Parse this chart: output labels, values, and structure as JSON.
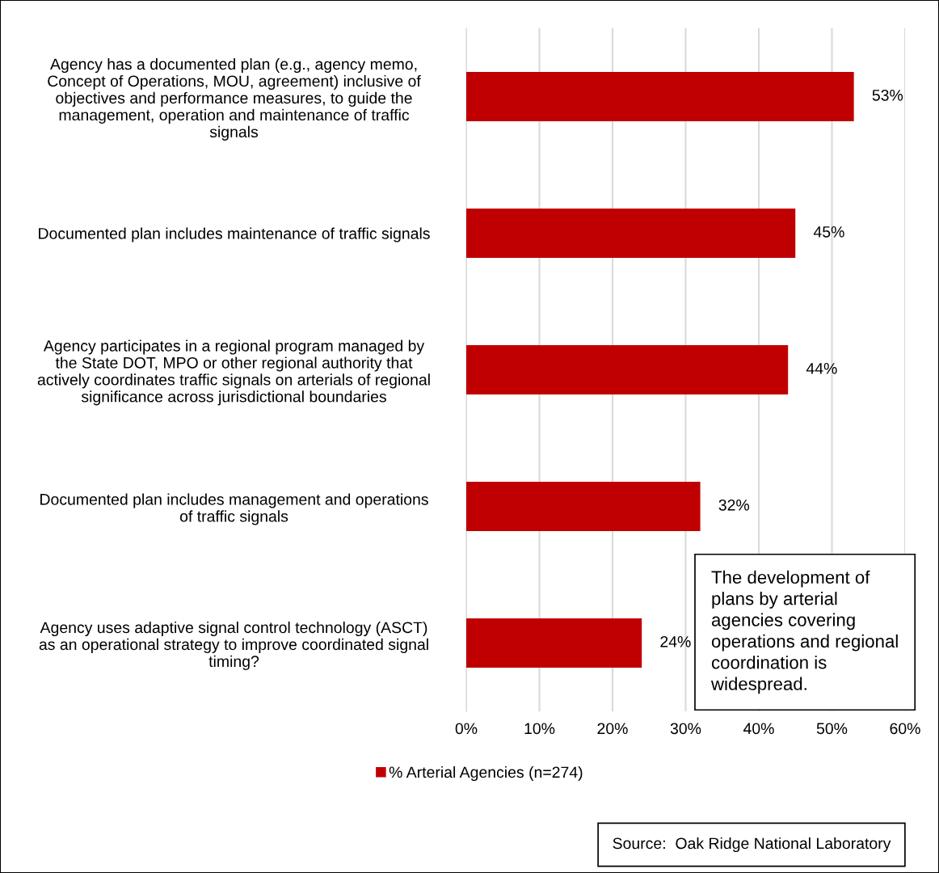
{
  "chart_data": {
    "type": "bar",
    "orientation": "horizontal",
    "categories": [
      "Agency has a documented plan (e.g., agency memo,\nConcept of Operations, MOU, agreement) inclusive of\nobjectives and performance measures, to guide the\nmanagement, operation and maintenance of traffic\nsignals",
      "Documented plan includes maintenance of traffic signals",
      "Agency participates in a regional program managed by\nthe State DOT, MPO or other regional authority that\nactively coordinates traffic signals on arterials of regional\nsignificance across jurisdictional boundaries",
      "Documented plan includes management and operations\nof traffic signals",
      "Agency uses adaptive signal control technology (ASCT)\nas an operational strategy to improve coordinated signal\ntiming?"
    ],
    "series": [
      {
        "name": "% Arterial Agencies (n=274)",
        "color": "#c00000",
        "values": [
          53,
          45,
          44,
          32,
          24
        ],
        "value_labels": [
          "53%",
          "45%",
          "44%",
          "32%",
          "24%"
        ]
      }
    ],
    "xlim": [
      0,
      60
    ],
    "xticks": [
      {
        "value": 0,
        "label": "0%"
      },
      {
        "value": 10,
        "label": "10%"
      },
      {
        "value": 20,
        "label": "20%"
      },
      {
        "value": 30,
        "label": "30%"
      },
      {
        "value": 40,
        "label": "40%"
      },
      {
        "value": 50,
        "label": "50%"
      },
      {
        "value": 60,
        "label": "60%"
      }
    ],
    "grid": "x",
    "legend": "bottom",
    "annotations": [
      "The development of\nplans by arterial\nagencies covering\noperations and regional\ncoordination is\nwidespread.",
      "Source:  Oak Ridge National Laboratory"
    ]
  }
}
